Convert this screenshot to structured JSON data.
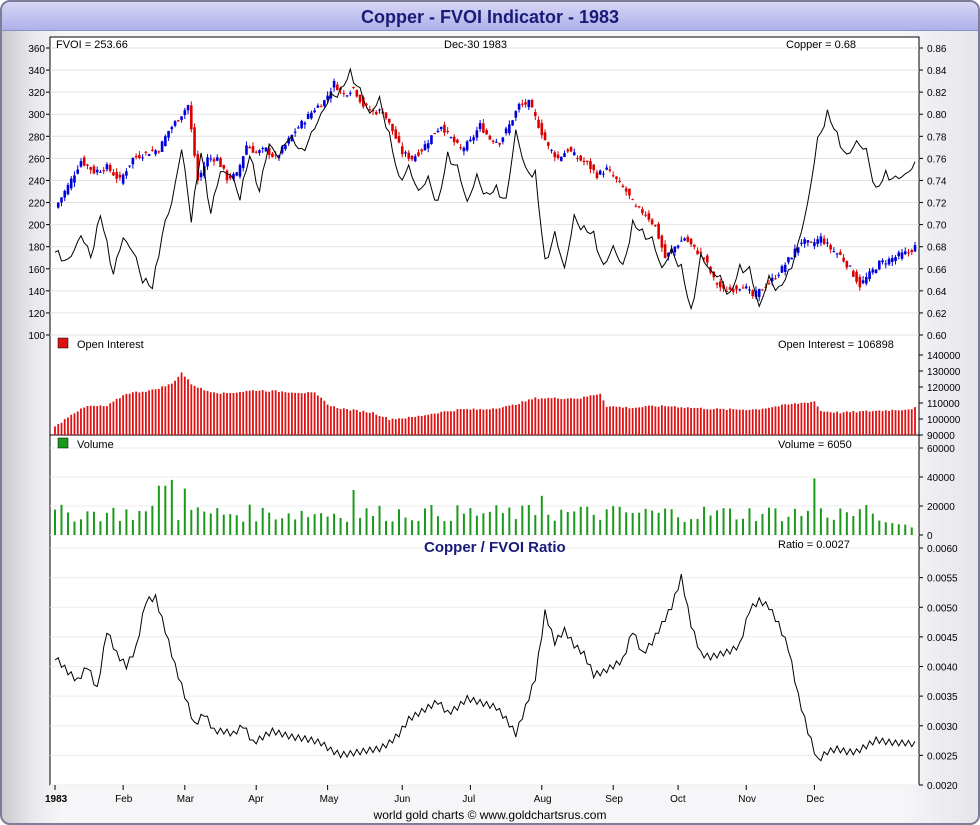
{
  "title": "Copper - FVOI Indicator - 1983",
  "footer": "world gold charts © www.goldchartsrus.com",
  "colors": {
    "up": "#0000dd",
    "down": "#dd0000",
    "oi": "#dd1111",
    "volume": "#1a9a1a",
    "title": "#1a1a78"
  },
  "chart_data": [
    {
      "type": "line",
      "panel": "price",
      "header_left": "FVOI = 253.66",
      "header_center": "Dec-30  1983",
      "header_right": "Copper = 0.68",
      "left_axis": {
        "ylim": [
          100,
          360
        ],
        "ticks": [
          "100",
          "120",
          "140",
          "160",
          "180",
          "200",
          "220",
          "240",
          "260",
          "280",
          "300",
          "320",
          "340",
          "360"
        ]
      },
      "right_axis": {
        "ylim": [
          0.6,
          0.86
        ],
        "ticks": [
          "0.60",
          "0.62",
          "0.64",
          "0.66",
          "0.68",
          "0.70",
          "0.72",
          "0.74",
          "0.76",
          "0.78",
          "0.80",
          "0.82",
          "0.84",
          "0.86"
        ]
      },
      "fvoi_keypoints": [
        [
          0,
          175
        ],
        [
          4,
          165
        ],
        [
          8,
          190
        ],
        [
          11,
          170
        ],
        [
          14,
          208
        ],
        [
          18,
          155
        ],
        [
          21,
          188
        ],
        [
          24,
          175
        ],
        [
          27,
          150
        ],
        [
          30,
          142
        ],
        [
          33,
          190
        ],
        [
          36,
          220
        ],
        [
          39,
          268
        ],
        [
          42,
          205
        ],
        [
          45,
          265
        ],
        [
          48,
          210
        ],
        [
          51,
          248
        ],
        [
          54,
          245
        ],
        [
          57,
          225
        ],
        [
          60,
          262
        ],
        [
          63,
          230
        ],
        [
          66,
          273
        ],
        [
          69,
          260
        ],
        [
          72,
          280
        ],
        [
          76,
          265
        ],
        [
          79,
          280
        ],
        [
          82,
          300
        ],
        [
          85,
          315
        ],
        [
          88,
          320
        ],
        [
          91,
          337
        ],
        [
          94,
          320
        ],
        [
          97,
          300
        ],
        [
          100,
          312
        ],
        [
          103,
          280
        ],
        [
          106,
          240
        ],
        [
          109,
          250
        ],
        [
          112,
          230
        ],
        [
          115,
          240
        ],
        [
          118,
          218
        ],
        [
          121,
          262
        ],
        [
          124,
          250
        ],
        [
          127,
          220
        ],
        [
          130,
          242
        ],
        [
          133,
          225
        ],
        [
          136,
          232
        ],
        [
          139,
          220
        ],
        [
          142,
          285
        ],
        [
          145,
          248
        ],
        [
          148,
          245
        ],
        [
          151,
          165
        ],
        [
          154,
          190
        ],
        [
          157,
          160
        ],
        [
          160,
          205
        ],
        [
          163,
          195
        ],
        [
          166,
          190
        ],
        [
          169,
          160
        ],
        [
          172,
          180
        ],
        [
          175,
          160
        ],
        [
          178,
          200
        ],
        [
          181,
          192
        ],
        [
          184,
          185
        ],
        [
          187,
          160
        ],
        [
          190,
          175
        ],
        [
          193,
          160
        ],
        [
          196,
          120
        ],
        [
          199,
          170
        ],
        [
          202,
          158
        ],
        [
          205,
          150
        ],
        [
          208,
          135
        ],
        [
          211,
          160
        ],
        [
          214,
          158
        ],
        [
          217,
          125
        ],
        [
          220,
          150
        ],
        [
          223,
          140
        ],
        [
          226,
          155
        ],
        [
          229,
          180
        ],
        [
          232,
          220
        ],
        [
          235,
          275
        ],
        [
          238,
          300
        ],
        [
          241,
          280
        ],
        [
          244,
          260
        ],
        [
          247,
          275
        ],
        [
          250,
          265
        ],
        [
          253,
          230
        ],
        [
          256,
          245
        ],
        [
          259,
          240
        ],
        [
          262,
          245
        ],
        [
          265,
          253
        ]
      ],
      "copper_keypoints": [
        [
          0,
          0.715
        ],
        [
          4,
          0.735
        ],
        [
          8,
          0.758
        ],
        [
          12,
          0.748
        ],
        [
          16,
          0.752
        ],
        [
          20,
          0.74
        ],
        [
          24,
          0.76
        ],
        [
          28,
          0.765
        ],
        [
          32,
          0.768
        ],
        [
          35,
          0.785
        ],
        [
          38,
          0.796
        ],
        [
          41,
          0.808
        ],
        [
          44,
          0.74
        ],
        [
          47,
          0.76
        ],
        [
          50,
          0.76
        ],
        [
          53,
          0.742
        ],
        [
          56,
          0.745
        ],
        [
          59,
          0.772
        ],
        [
          62,
          0.765
        ],
        [
          65,
          0.768
        ],
        [
          68,
          0.76
        ],
        [
          71,
          0.772
        ],
        [
          74,
          0.785
        ],
        [
          77,
          0.795
        ],
        [
          80,
          0.805
        ],
        [
          83,
          0.812
        ],
        [
          86,
          0.828
        ],
        [
          89,
          0.818
        ],
        [
          92,
          0.824
        ],
        [
          95,
          0.808
        ],
        [
          98,
          0.802
        ],
        [
          101,
          0.803
        ],
        [
          104,
          0.785
        ],
        [
          107,
          0.765
        ],
        [
          110,
          0.76
        ],
        [
          113,
          0.768
        ],
        [
          116,
          0.78
        ],
        [
          119,
          0.79
        ],
        [
          122,
          0.778
        ],
        [
          125,
          0.768
        ],
        [
          128,
          0.775
        ],
        [
          131,
          0.79
        ],
        [
          134,
          0.778
        ],
        [
          137,
          0.775
        ],
        [
          140,
          0.79
        ],
        [
          143,
          0.808
        ],
        [
          146,
          0.81
        ],
        [
          149,
          0.79
        ],
        [
          152,
          0.77
        ],
        [
          155,
          0.76
        ],
        [
          158,
          0.768
        ],
        [
          161,
          0.76
        ],
        [
          164,
          0.755
        ],
        [
          167,
          0.745
        ],
        [
          170,
          0.75
        ],
        [
          173,
          0.74
        ],
        [
          176,
          0.73
        ],
        [
          179,
          0.715
        ],
        [
          182,
          0.71
        ],
        [
          185,
          0.698
        ],
        [
          188,
          0.67
        ],
        [
          191,
          0.68
        ],
        [
          194,
          0.688
        ],
        [
          197,
          0.678
        ],
        [
          200,
          0.67
        ],
        [
          203,
          0.65
        ],
        [
          206,
          0.64
        ],
        [
          209,
          0.642
        ],
        [
          212,
          0.645
        ],
        [
          215,
          0.635
        ],
        [
          218,
          0.642
        ],
        [
          221,
          0.65
        ],
        [
          224,
          0.66
        ],
        [
          227,
          0.672
        ],
        [
          230,
          0.685
        ],
        [
          233,
          0.682
        ],
        [
          236,
          0.688
        ],
        [
          239,
          0.678
        ],
        [
          242,
          0.672
        ],
        [
          245,
          0.66
        ],
        [
          248,
          0.645
        ],
        [
          251,
          0.655
        ],
        [
          254,
          0.665
        ],
        [
          257,
          0.668
        ],
        [
          260,
          0.672
        ],
        [
          263,
          0.675
        ],
        [
          265,
          0.68
        ]
      ]
    },
    {
      "type": "bar",
      "panel": "open_interest",
      "legend": "Open Interest",
      "header_right": "Open Interest = 106898",
      "ylim": [
        90000,
        145000
      ],
      "ticks": [
        "90000",
        "100000",
        "110000",
        "120000",
        "130000",
        "140000"
      ],
      "keypoints": [
        [
          0,
          95000
        ],
        [
          5,
          103000
        ],
        [
          10,
          108000
        ],
        [
          16,
          108000
        ],
        [
          22,
          116000
        ],
        [
          30,
          118000
        ],
        [
          36,
          122000
        ],
        [
          39,
          129000
        ],
        [
          42,
          122000
        ],
        [
          46,
          118000
        ],
        [
          52,
          116000
        ],
        [
          62,
          118000
        ],
        [
          72,
          117000
        ],
        [
          80,
          116000
        ],
        [
          85,
          108000
        ],
        [
          90,
          106000
        ],
        [
          98,
          104000
        ],
        [
          103,
          100000
        ],
        [
          110,
          101000
        ],
        [
          118,
          104000
        ],
        [
          125,
          106000
        ],
        [
          132,
          106000
        ],
        [
          140,
          108000
        ],
        [
          148,
          113000
        ],
        [
          156,
          113000
        ],
        [
          162,
          113000
        ],
        [
          168,
          116000
        ],
        [
          170,
          108000
        ],
        [
          178,
          107000
        ],
        [
          184,
          108000
        ],
        [
          190,
          108000
        ],
        [
          196,
          107000
        ],
        [
          206,
          106000
        ],
        [
          216,
          106000
        ],
        [
          226,
          109000
        ],
        [
          234,
          111000
        ],
        [
          236,
          105000
        ],
        [
          242,
          104000
        ],
        [
          252,
          105000
        ],
        [
          262,
          106000
        ],
        [
          265,
          106898
        ]
      ]
    },
    {
      "type": "bar",
      "panel": "volume",
      "legend": "Volume",
      "header_right": "Volume = 6050",
      "ylim": [
        0,
        60000
      ],
      "ticks": [
        "0",
        "20000",
        "40000",
        "60000"
      ]
    },
    {
      "type": "line",
      "panel": "ratio",
      "title": "Copper / FVOI Ratio",
      "header_right": "Ratio = 0.0027",
      "ylim": [
        0.002,
        0.006
      ],
      "ticks": [
        "0.0020",
        "0.0025",
        "0.0030",
        "0.0035",
        "0.0040",
        "0.0045",
        "0.0050",
        "0.0055",
        "0.0060"
      ],
      "keypoints": [
        [
          0,
          0.00415
        ],
        [
          4,
          0.0039
        ],
        [
          7,
          0.00375
        ],
        [
          10,
          0.004
        ],
        [
          13,
          0.0036
        ],
        [
          16,
          0.0046
        ],
        [
          19,
          0.0042
        ],
        [
          22,
          0.004
        ],
        [
          25,
          0.0043
        ],
        [
          28,
          0.0051
        ],
        [
          31,
          0.00515
        ],
        [
          34,
          0.0046
        ],
        [
          37,
          0.004
        ],
        [
          40,
          0.0035
        ],
        [
          43,
          0.003
        ],
        [
          46,
          0.0032
        ],
        [
          49,
          0.0029
        ],
        [
          52,
          0.0029
        ],
        [
          55,
          0.00285
        ],
        [
          58,
          0.003
        ],
        [
          61,
          0.0027
        ],
        [
          64,
          0.0028
        ],
        [
          67,
          0.0029
        ],
        [
          70,
          0.00285
        ],
        [
          73,
          0.0028
        ],
        [
          76,
          0.00278
        ],
        [
          79,
          0.00275
        ],
        [
          82,
          0.0027
        ],
        [
          85,
          0.00258
        ],
        [
          88,
          0.0025
        ],
        [
          91,
          0.00252
        ],
        [
          94,
          0.00255
        ],
        [
          97,
          0.00258
        ],
        [
          100,
          0.0026
        ],
        [
          103,
          0.0027
        ],
        [
          106,
          0.00285
        ],
        [
          109,
          0.0031
        ],
        [
          112,
          0.0032
        ],
        [
          115,
          0.0033
        ],
        [
          118,
          0.0034
        ],
        [
          121,
          0.0032
        ],
        [
          124,
          0.0033
        ],
        [
          127,
          0.00345
        ],
        [
          130,
          0.0034
        ],
        [
          133,
          0.00335
        ],
        [
          136,
          0.0033
        ],
        [
          139,
          0.0031
        ],
        [
          142,
          0.00285
        ],
        [
          145,
          0.0033
        ],
        [
          148,
          0.0038
        ],
        [
          151,
          0.0049
        ],
        [
          154,
          0.0044
        ],
        [
          157,
          0.0046
        ],
        [
          160,
          0.00435
        ],
        [
          163,
          0.0042
        ],
        [
          166,
          0.00385
        ],
        [
          169,
          0.0039
        ],
        [
          172,
          0.004
        ],
        [
          175,
          0.0041
        ],
        [
          178,
          0.0046
        ],
        [
          181,
          0.0042
        ],
        [
          184,
          0.0044
        ],
        [
          187,
          0.0047
        ],
        [
          190,
          0.005
        ],
        [
          193,
          0.0055
        ],
        [
          196,
          0.0047
        ],
        [
          199,
          0.0042
        ],
        [
          202,
          0.00415
        ],
        [
          205,
          0.0042
        ],
        [
          208,
          0.00425
        ],
        [
          211,
          0.00435
        ],
        [
          214,
          0.00495
        ],
        [
          217,
          0.0051
        ],
        [
          220,
          0.005
        ],
        [
          223,
          0.0047
        ],
        [
          226,
          0.0043
        ],
        [
          229,
          0.0035
        ],
        [
          232,
          0.0029
        ],
        [
          235,
          0.0024
        ],
        [
          238,
          0.00255
        ],
        [
          241,
          0.0026
        ],
        [
          244,
          0.00255
        ],
        [
          247,
          0.00255
        ],
        [
          250,
          0.00265
        ],
        [
          253,
          0.00275
        ],
        [
          256,
          0.00272
        ],
        [
          259,
          0.0027
        ],
        [
          262,
          0.0027
        ],
        [
          265,
          0.00268
        ]
      ]
    }
  ],
  "months": [
    "1983",
    "Feb",
    "Mar",
    "Apr",
    "May",
    "Jun",
    "Jul",
    "Aug",
    "Sep",
    "Oct",
    "Nov",
    "Dec"
  ],
  "month_positions": [
    0,
    21,
    40,
    62,
    84,
    107,
    128,
    150,
    172,
    192,
    213,
    234
  ]
}
